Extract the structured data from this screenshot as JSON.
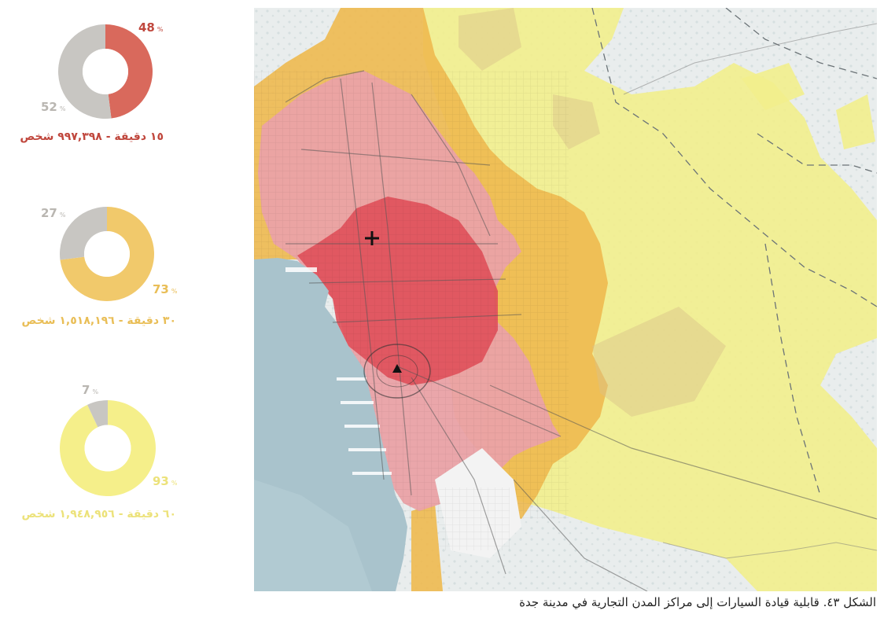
{
  "donuts": [
    {
      "color": "#d9695c",
      "remainder_color": "#c8c6c2",
      "value_pct": 48,
      "remainder_pct": 52,
      "value_label": "48",
      "remainder_label": "52",
      "pct_sign": "%",
      "caption": "١٥ دقيقة - ٩٩٧,٣٩٨ شخص",
      "caption_color": "#c0473d"
    },
    {
      "color": "#f1c96b",
      "remainder_color": "#c8c6c2",
      "value_pct": 73,
      "remainder_pct": 27,
      "value_label": "73",
      "remainder_label": "27",
      "pct_sign": "%",
      "caption": "٣٠ دقيقة - ١,٥١٨,١٩٦ شخص",
      "caption_color": "#e9be57"
    },
    {
      "color": "#f5ef8a",
      "remainder_color": "#c8c6c2",
      "value_pct": 93,
      "remainder_pct": 7,
      "value_label": "93",
      "remainder_label": "7",
      "pct_sign": "%",
      "caption": "٦٠ دقيقة - ١,٩٤٨,٩٥٦ شخص",
      "caption_color": "#ece27a"
    }
  ],
  "map": {
    "colors": {
      "sea": "#a9c3cc",
      "land": "#e8ecec",
      "zone_60": "#f2ee8c",
      "zone_30": "#eeb94f",
      "zone_15": "#e9a4a8",
      "core": "#e0505a"
    },
    "markers": [
      "cross-icon",
      "triangle-icon"
    ]
  },
  "figure_caption": "الشكل ٤٣. قابلية قيادة السيارات إلى مراكز المدن التجارية في مدينة جدة"
}
